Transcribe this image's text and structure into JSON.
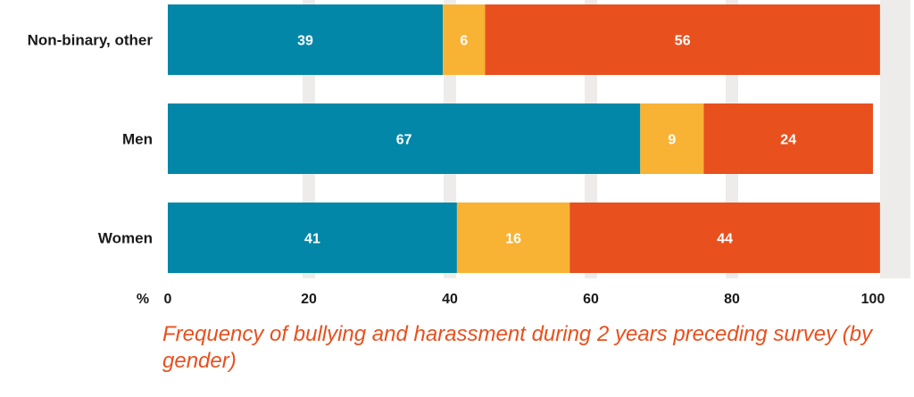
{
  "chart_data": {
    "type": "bar",
    "orientation": "horizontal",
    "stacked": true,
    "categories": [
      "Non-binary, other",
      "Men",
      "Women"
    ],
    "series": [
      {
        "values": [
          39,
          67,
          41
        ],
        "color": "#0287a8"
      },
      {
        "values": [
          6,
          9,
          16
        ],
        "color": "#f8b334"
      },
      {
        "values": [
          56,
          24,
          44
        ],
        "color": "#e8501e"
      }
    ],
    "xlim": [
      0,
      100
    ],
    "x_ticks": [
      "0",
      "20",
      "40",
      "60",
      "80",
      "100"
    ],
    "x_unit_label": "%",
    "grid": true,
    "grid_color": "#eeecea",
    "legend": "none"
  },
  "caption": "Frequency of bullying and harassment during 2 years preceding survey (by gender)"
}
